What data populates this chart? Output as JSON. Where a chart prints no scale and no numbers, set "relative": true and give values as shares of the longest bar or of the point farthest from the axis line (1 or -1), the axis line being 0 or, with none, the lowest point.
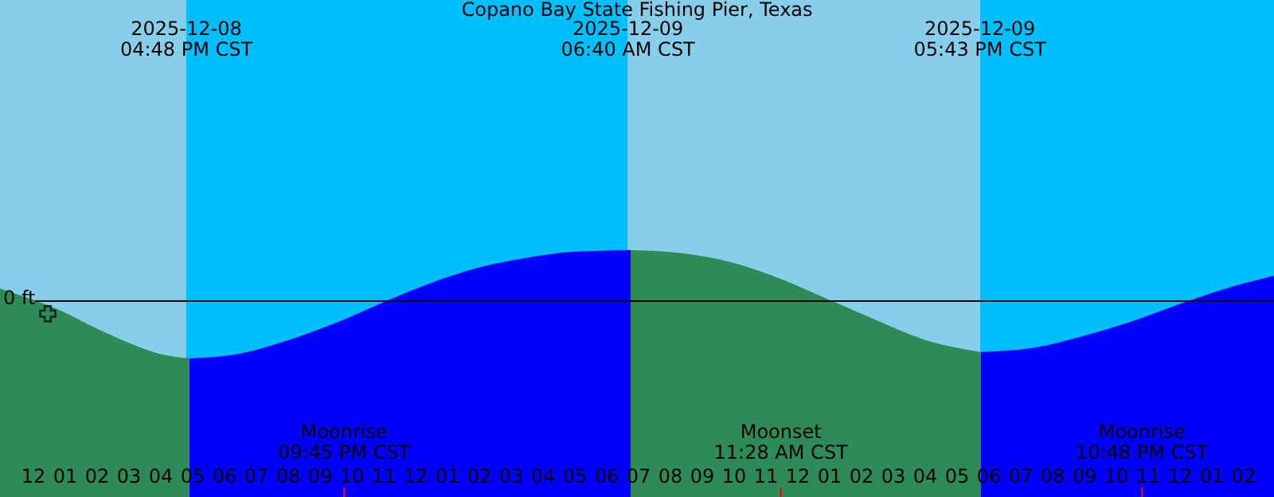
{
  "chart_data": {
    "type": "area",
    "title": "Copano Bay State Fishing Pier, Texas",
    "relative": true,
    "xlim": [
      "2025-12-08T10:57",
      "2025-12-10T02:57"
    ],
    "xticks": [
      {
        "value": "2025-12-08T11:00",
        "label": null
      },
      {
        "value": "2025-12-08T12:00",
        "label": "12"
      },
      {
        "value": "2025-12-08T13:00",
        "label": "01"
      },
      {
        "value": "2025-12-08T14:00",
        "label": "02"
      },
      {
        "value": "2025-12-08T15:00",
        "label": "03"
      },
      {
        "value": "2025-12-08T16:00",
        "label": "04"
      },
      {
        "value": "2025-12-08T17:00",
        "label": "05"
      },
      {
        "value": "2025-12-08T18:00",
        "label": "06"
      },
      {
        "value": "2025-12-08T19:00",
        "label": "07"
      },
      {
        "value": "2025-12-08T20:00",
        "label": "08"
      },
      {
        "value": "2025-12-08T21:00",
        "label": "09"
      },
      {
        "value": "2025-12-08T22:00",
        "label": "10"
      },
      {
        "value": "2025-12-08T23:00",
        "label": "11"
      },
      {
        "value": "2025-12-09T00:00",
        "label": "12"
      },
      {
        "value": "2025-12-09T01:00",
        "label": "01"
      },
      {
        "value": "2025-12-09T02:00",
        "label": "02"
      },
      {
        "value": "2025-12-09T03:00",
        "label": "03"
      },
      {
        "value": "2025-12-09T04:00",
        "label": "04"
      },
      {
        "value": "2025-12-09T05:00",
        "label": "05"
      },
      {
        "value": "2025-12-09T06:00",
        "label": "06"
      },
      {
        "value": "2025-12-09T07:00",
        "label": "07"
      },
      {
        "value": "2025-12-09T08:00",
        "label": "08"
      },
      {
        "value": "2025-12-09T09:00",
        "label": "09"
      },
      {
        "value": "2025-12-09T10:00",
        "label": "10"
      },
      {
        "value": "2025-12-09T11:00",
        "label": "11"
      },
      {
        "value": "2025-12-09T12:00",
        "label": "12"
      },
      {
        "value": "2025-12-09T13:00",
        "label": "01"
      },
      {
        "value": "2025-12-09T14:00",
        "label": "02"
      },
      {
        "value": "2025-12-09T15:00",
        "label": "03"
      },
      {
        "value": "2025-12-09T16:00",
        "label": "04"
      },
      {
        "value": "2025-12-09T17:00",
        "label": "05"
      },
      {
        "value": "2025-12-09T18:00",
        "label": "06"
      },
      {
        "value": "2025-12-09T19:00",
        "label": "07"
      },
      {
        "value": "2025-12-09T20:00",
        "label": "08"
      },
      {
        "value": "2025-12-09T21:00",
        "label": "09"
      },
      {
        "value": "2025-12-09T22:00",
        "label": "10"
      },
      {
        "value": "2025-12-09T23:00",
        "label": "11"
      },
      {
        "value": "2025-12-10T00:00",
        "label": "12"
      },
      {
        "value": "2025-12-10T01:00",
        "label": "01"
      },
      {
        "value": "2025-12-10T02:00",
        "label": "02"
      }
    ],
    "series": [
      {
        "color": "#2e8b57",
        "x": [
          "2025-12-08T10:57",
          "2025-12-08T11:57",
          "2025-12-08T12:57",
          "2025-12-08T13:57",
          "2025-12-08T14:57",
          "2025-12-08T15:57",
          "2025-12-08T16:54"
        ],
        "values": [
          0.22,
          0.03,
          -0.19,
          -0.47,
          -0.72,
          -0.92,
          -1
        ]
      },
      {
        "color": "#0000ff",
        "x": [
          "2025-12-08T16:54",
          "2025-12-08T18:27",
          "2025-12-08T19:57",
          "2025-12-08T21:27",
          "2025-12-08T22:57",
          "2025-12-09T00:27",
          "2025-12-09T01:57",
          "2025-12-09T03:27",
          "2025-12-09T04:57",
          "2025-12-09T06:45"
        ],
        "values": [
          -1,
          -0.92,
          -0.69,
          -0.39,
          -0.03,
          0.31,
          0.58,
          0.75,
          0.86,
          0.89
        ]
      },
      {
        "color": "#2e8b57",
        "x": [
          "2025-12-09T06:45",
          "2025-12-09T08:27",
          "2025-12-09T09:57",
          "2025-12-09T11:27",
          "2025-12-09T12:57",
          "2025-12-09T14:27",
          "2025-12-09T15:57",
          "2025-12-09T17:45"
        ],
        "values": [
          0.89,
          0.83,
          0.67,
          0.39,
          0.03,
          -0.33,
          -0.67,
          -0.89
        ]
      },
      {
        "color": "#0000ff",
        "x": [
          "2025-12-09T17:45",
          "2025-12-09T19:27",
          "2025-12-09T20:57",
          "2025-12-09T22:27",
          "2025-12-09T23:57",
          "2025-12-10T01:27",
          "2025-12-10T02:57"
        ],
        "values": [
          -0.89,
          -0.81,
          -0.61,
          -0.36,
          -0.06,
          0.22,
          0.44
        ]
      },
      {
        "type": "scatter",
        "marker": "cross",
        "color": "#000000",
        "x": [
          "2025-12-08T12:27"
        ],
        "values": [
          -0.22
        ]
      }
    ],
    "bands": [
      {
        "axis": "x",
        "from": "2025-12-08T10:57",
        "to": "2025-12-08T16:48",
        "color": "#87ceeb"
      },
      {
        "axis": "x",
        "from": "2025-12-08T16:48",
        "to": "2025-12-09T06:40",
        "color": "#00bfff"
      },
      {
        "axis": "x",
        "from": "2025-12-09T06:40",
        "to": "2025-12-09T17:43",
        "color": "#87ceeb"
      },
      {
        "axis": "x",
        "from": "2025-12-09T17:43",
        "to": "2025-12-10T02:57",
        "color": "#00bfff"
      }
    ],
    "ref_lines": [
      {
        "axis": "y",
        "value": 0,
        "label": "0 ft",
        "color": "#000000"
      },
      {
        "axis": "x",
        "value": "2025-12-08T21:45",
        "label": "Moonrise\n09:45 PM CST",
        "color": "#ff0000"
      },
      {
        "axis": "x",
        "value": "2025-12-09T11:28",
        "label": "Moonset\n11:28 AM CST",
        "color": "#ff0000"
      },
      {
        "axis": "x",
        "value": "2025-12-09T22:48",
        "label": "Moonrise\n10:48 PM CST",
        "color": "#ff0000"
      }
    ],
    "annotations": [
      {
        "text": "2025-12-08\n04:48 PM CST",
        "x": "2025-12-08T16:48"
      },
      {
        "text": "2025-12-09\n06:40 AM CST",
        "x": "2025-12-09T06:40"
      },
      {
        "text": "2025-12-09\n05:43 PM CST",
        "x": "2025-12-09T17:43"
      }
    ]
  }
}
